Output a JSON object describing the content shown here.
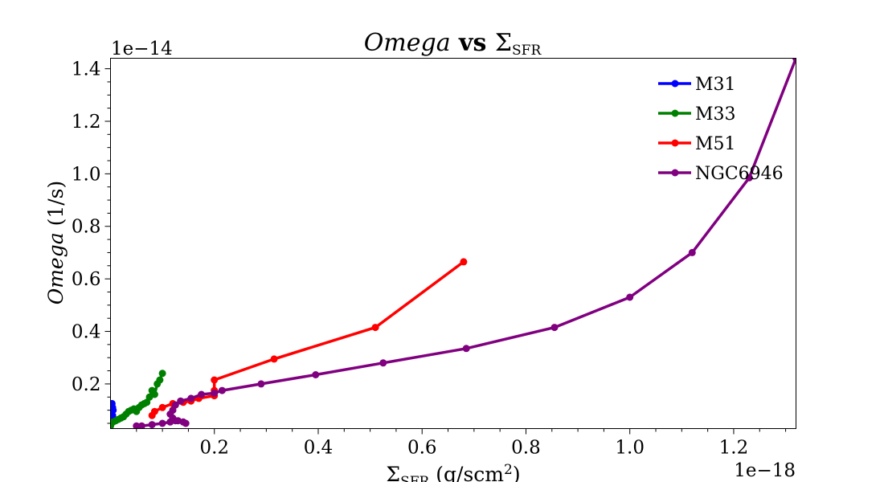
{
  "chart_data": {
    "type": "line",
    "title": {
      "omega": "Omega",
      "vs": " vs ",
      "sigma": "Σ",
      "sub": "SFR"
    },
    "xlabel": {
      "sigma": "Σ",
      "sub": "SFR",
      "unit_pre": " (g/scm",
      "sup": "2",
      "unit_post": ")"
    },
    "ylabel": {
      "omega": "Omega",
      "unit": " (1/s)"
    },
    "x_offset_label": "1e−18",
    "y_offset_label": "1e−14",
    "x_scale": 1e-18,
    "y_scale": 1e-14,
    "xlim": [
      0.0,
      1.32
    ],
    "ylim": [
      0.03,
      1.44
    ],
    "x_ticks": [
      0.2,
      0.4,
      0.6,
      0.8,
      1.0,
      1.2
    ],
    "x_tick_labels": [
      "0.2",
      "0.4",
      "0.6",
      "0.8",
      "1.0",
      "1.2"
    ],
    "y_ticks": [
      0.2,
      0.4,
      0.6,
      0.8,
      1.0,
      1.2,
      1.4
    ],
    "y_tick_labels": [
      "0.2",
      "0.4",
      "0.6",
      "0.8",
      "1.0",
      "1.2",
      "1.4"
    ],
    "grid": false,
    "legend_position": "top-right",
    "series": [
      {
        "name": "M31",
        "color": "#0000ff",
        "x": [
          0.003,
          0.004,
          0.005,
          0.004,
          0.003,
          0.003,
          0.002
        ],
        "y": [
          0.06,
          0.08,
          0.1,
          0.11,
          0.125,
          0.1,
          0.07
        ]
      },
      {
        "name": "M33",
        "color": "#008000",
        "x": [
          0.0,
          0.005,
          0.01,
          0.015,
          0.02,
          0.025,
          0.03,
          0.035,
          0.04,
          0.045,
          0.05,
          0.055,
          0.06,
          0.065,
          0.07,
          0.075,
          0.08,
          0.085,
          0.09,
          0.095,
          0.1
        ],
        "y": [
          0.04,
          0.055,
          0.06,
          0.065,
          0.07,
          0.075,
          0.085,
          0.095,
          0.1,
          0.105,
          0.095,
          0.11,
          0.12,
          0.125,
          0.13,
          0.15,
          0.175,
          0.16,
          0.2,
          0.215,
          0.24
        ]
      },
      {
        "name": "M51",
        "color": "#ff0000",
        "x": [
          0.08,
          0.085,
          0.1,
          0.12,
          0.14,
          0.155,
          0.17,
          0.2,
          0.2,
          0.2,
          0.315,
          0.51,
          0.68
        ],
        "y": [
          0.08,
          0.095,
          0.11,
          0.125,
          0.13,
          0.135,
          0.145,
          0.155,
          0.175,
          0.215,
          0.295,
          0.415,
          0.665
        ]
      },
      {
        "name": "NGC6946",
        "color": "#800080",
        "x": [
          0.05,
          0.06,
          0.08,
          0.1,
          0.115,
          0.125,
          0.14,
          0.145,
          0.13,
          0.12,
          0.115,
          0.12,
          0.125,
          0.135,
          0.155,
          0.175,
          0.2,
          0.215,
          0.29,
          0.395,
          0.525,
          0.685,
          0.855,
          1.0,
          1.12,
          1.23,
          1.32
        ],
        "y": [
          0.04,
          0.04,
          0.045,
          0.05,
          0.055,
          0.06,
          0.055,
          0.05,
          0.06,
          0.07,
          0.085,
          0.1,
          0.12,
          0.135,
          0.145,
          0.16,
          0.165,
          0.175,
          0.2,
          0.235,
          0.28,
          0.335,
          0.415,
          0.53,
          0.7,
          0.985,
          1.44
        ]
      }
    ]
  }
}
